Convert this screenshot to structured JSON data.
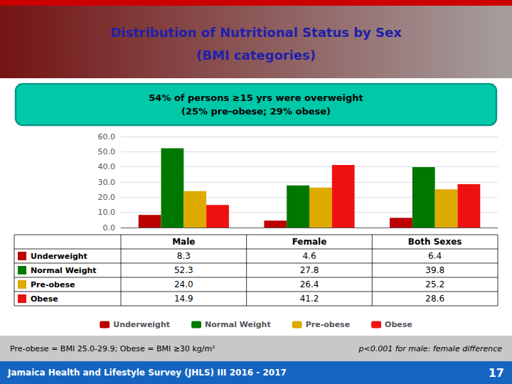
{
  "chart_data": {
    "type": "bar",
    "title": "Distribution of Nutritional Status by Sex\n(BMI categories)",
    "subtitle": "54% of persons ≥15 yrs were overweight\n(25% pre-obese; 29% obese)",
    "categories": [
      "Male",
      "Female",
      "Both Sexes"
    ],
    "series": [
      {
        "name": "Underweight",
        "color": "#BB0000",
        "values": [
          8.3,
          4.6,
          6.4
        ]
      },
      {
        "name": "Normal Weight",
        "color": "#007700",
        "values": [
          52.3,
          27.8,
          39.8
        ]
      },
      {
        "name": "Pre-obese",
        "color": "#DDAA00",
        "values": [
          24.0,
          26.4,
          25.2
        ]
      },
      {
        "name": "Obese",
        "color": "#EE1111",
        "values": [
          14.9,
          41.2,
          28.6
        ]
      }
    ],
    "ylim": [
      0,
      60
    ],
    "yticks": [
      {
        "value": 0,
        "label": "0.0"
      },
      {
        "value": 10,
        "label": "10.0"
      },
      {
        "value": 20,
        "label": "20.0"
      },
      {
        "value": 30,
        "label": "30.0"
      },
      {
        "value": 40,
        "label": "40.0"
      },
      {
        "value": 50,
        "label": "50.0"
      },
      {
        "value": 60,
        "label": "60.0"
      }
    ],
    "grid": true,
    "legend": "bottom",
    "tick_labels": "y",
    "table": {
      "rows": [
        {
          "name": "Underweight",
          "values": [
            "8.3",
            "4.6",
            "6.4"
          ]
        },
        {
          "name": "Normal Weight",
          "values": [
            "52.3",
            "27.8",
            "39.8"
          ]
        },
        {
          "name": "Pre-obese",
          "values": [
            "24.0",
            "26.4",
            "25.2"
          ]
        },
        {
          "name": "Obese",
          "values": [
            "14.9",
            "41.2",
            "28.6"
          ]
        }
      ]
    },
    "annotations": [
      "Pre-obese = BMI 25.0-29.9; Obese = BMI ≥30 kg/m²",
      "p<0.001 for male: female difference",
      "Jamaica Health and Lifestyle Survey (JHLS) III 2016 - 2017",
      "17"
    ]
  }
}
